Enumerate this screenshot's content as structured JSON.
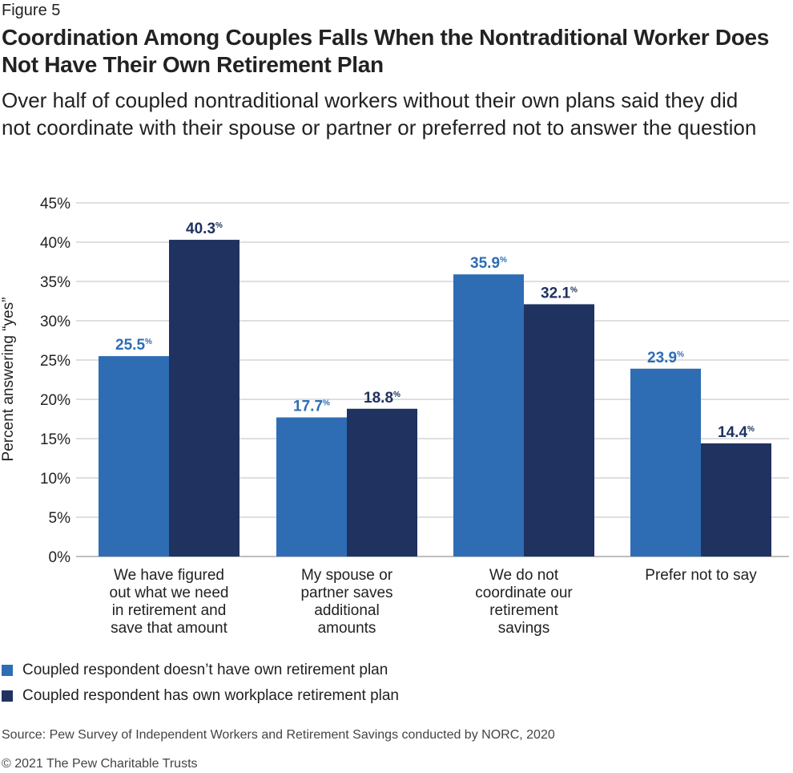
{
  "figure_label": "Figure 5",
  "title": "Coordination Among Couples Falls When the Nontraditional Worker Does Not Have Their Own Retirement Plan",
  "subtitle": "Over half of coupled nontraditional workers without their own plans said they did not coordinate with their spouse or partner or preferred not to answer the question",
  "source": "Source: Pew Survey of Independent Workers and Retirement Savings conducted by NORC, 2020",
  "copyright": "© 2021 The Pew Charitable Trusts",
  "chart_data": {
    "type": "bar",
    "title": "Coordination Among Couples Falls When the Nontraditional Worker Does Not Have Their Own Retirement Plan",
    "xlabel": "",
    "ylabel": "Percent answering “yes”",
    "ylim": [
      0,
      45
    ],
    "yticks": [
      "0%",
      "5%",
      "10%",
      "15%",
      "20%",
      "25%",
      "30%",
      "35%",
      "40%",
      "45%"
    ],
    "grid": true,
    "legend_position": "bottom-left",
    "categories": [
      "We have figured out what we need in retirement and save that amount",
      "My spouse or partner saves additional amounts",
      "We do not coordinate our retirement savings",
      "Prefer not to say"
    ],
    "series": [
      {
        "name": "Coupled respondent doesn’t have own retirement plan",
        "color": "#2e6db4",
        "values": [
          25.5,
          17.7,
          35.9,
          23.9
        ]
      },
      {
        "name": "Coupled respondent has own workplace retirement plan",
        "color": "#1f3260",
        "values": [
          40.3,
          18.8,
          32.1,
          14.4
        ]
      }
    ]
  }
}
